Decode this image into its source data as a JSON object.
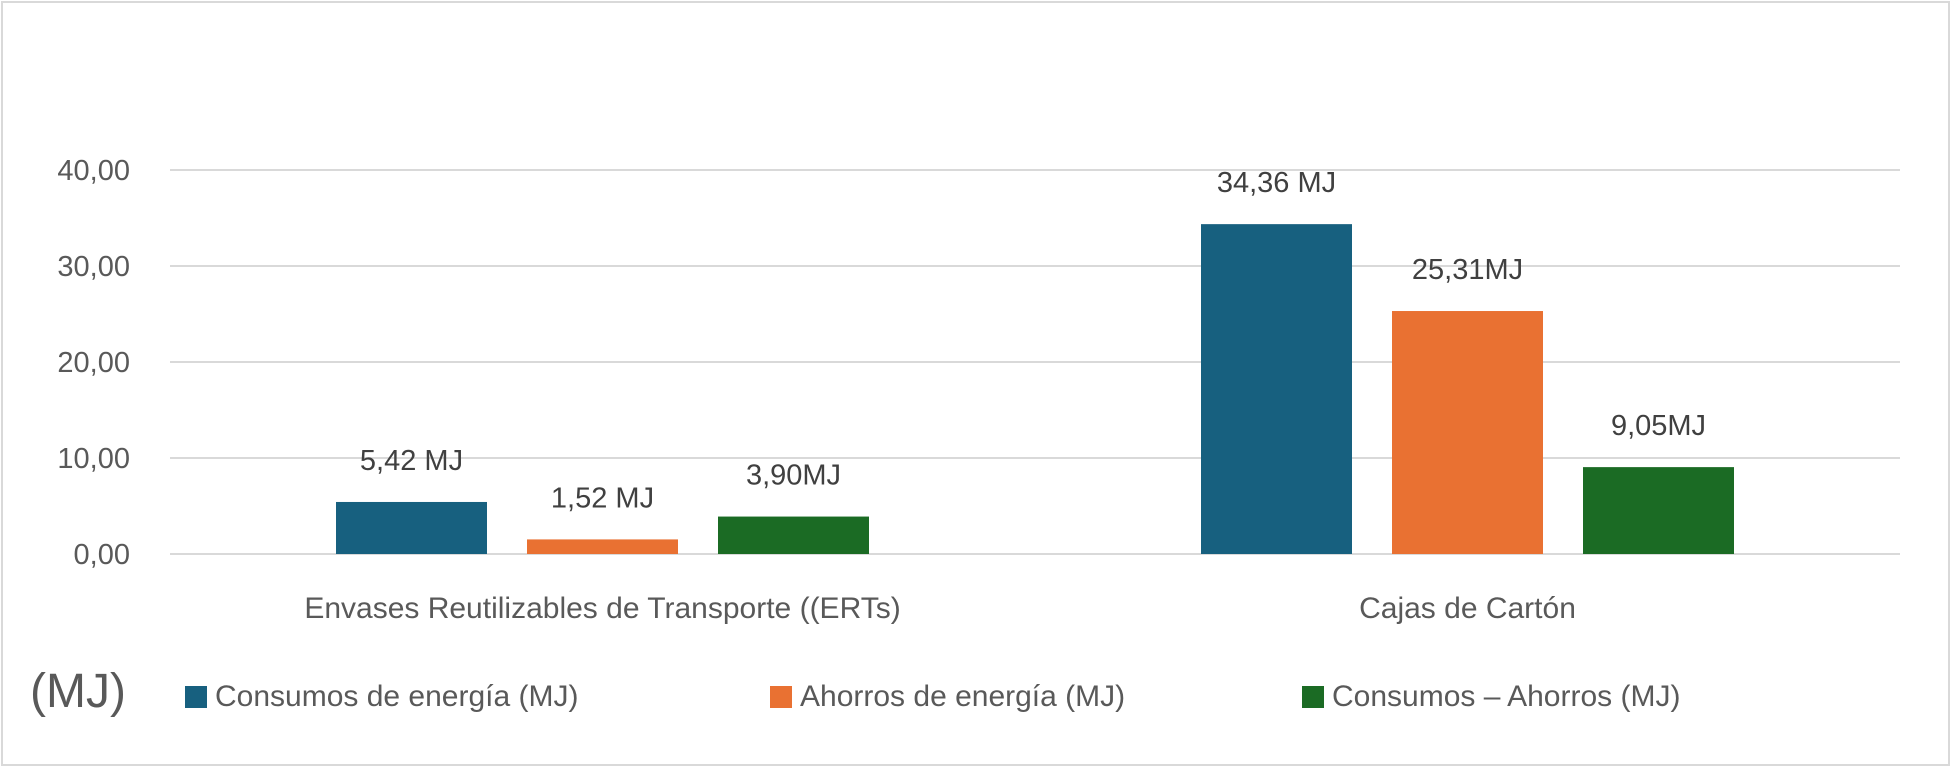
{
  "chart_data": {
    "type": "bar",
    "title": "",
    "xlabel": "",
    "ylabel": "(MJ)",
    "ylim": [
      0,
      40
    ],
    "yticks": [
      "0,00",
      "10,00",
      "20,00",
      "30,00",
      "40,00"
    ],
    "categories": [
      "Envases Reutilizables de Transporte ((ERTs)",
      "Cajas de Cartón"
    ],
    "grid": true,
    "legend_position": "bottom",
    "series": [
      {
        "name": "Consumos de energía (MJ)",
        "color": "#17607f",
        "values": [
          5.42,
          34.36
        ],
        "labels": [
          "5,42 MJ",
          "34,36 MJ"
        ]
      },
      {
        "name": "Ahorros de energía (MJ)",
        "color": "#e97132",
        "values": [
          1.52,
          25.31
        ],
        "labels": [
          "1,52 MJ",
          "25,31MJ"
        ]
      },
      {
        "name": "Consumos – Ahorros (MJ)",
        "color": "#1b6b24",
        "values": [
          3.9,
          9.05
        ],
        "labels": [
          "3,90MJ",
          "9,05MJ"
        ]
      }
    ]
  }
}
